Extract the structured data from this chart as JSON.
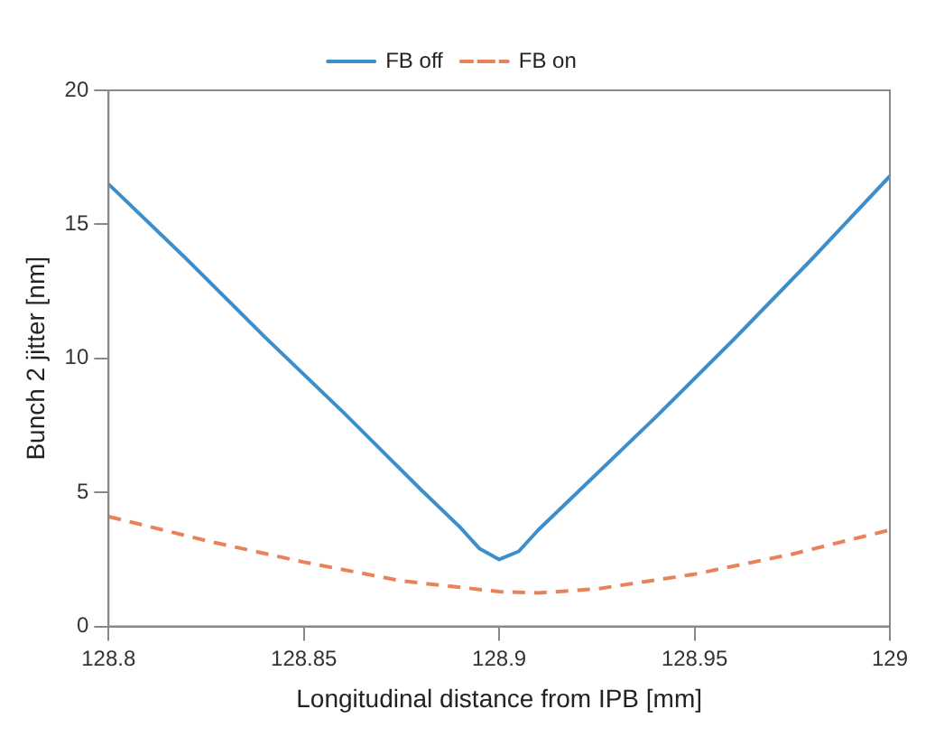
{
  "chart_data": {
    "type": "line",
    "xlabel": "Longitudinal distance from IPB [mm]",
    "ylabel": "Bunch 2 jitter [nm]",
    "xlim": [
      128.8,
      129
    ],
    "xticks": [
      128.8,
      128.85,
      128.9,
      128.95,
      129
    ],
    "ylim": [
      0,
      20
    ],
    "yticks": [
      0,
      5,
      10,
      15,
      20
    ],
    "legend": "top",
    "grid": false,
    "marker": "none",
    "series": [
      {
        "name": "FB off",
        "color": "#3d8fcb",
        "line_style": "solid",
        "x": [
          128.8,
          128.82,
          128.84,
          128.86,
          128.88,
          128.89,
          128.895,
          128.9,
          128.905,
          128.91,
          128.92,
          128.94,
          128.96,
          128.98,
          129
        ],
        "values": [
          16.5,
          13.7,
          10.8,
          8.0,
          5.1,
          3.7,
          2.9,
          2.5,
          2.8,
          3.6,
          5.0,
          7.8,
          10.7,
          13.7,
          16.8
        ]
      },
      {
        "name": "FB on",
        "color": "#e8825a",
        "line_style": "dashed",
        "x": [
          128.8,
          128.825,
          128.85,
          128.875,
          128.9,
          128.91,
          128.925,
          128.95,
          128.975,
          129
        ],
        "values": [
          4.1,
          3.2,
          2.4,
          1.7,
          1.3,
          1.25,
          1.4,
          1.95,
          2.7,
          3.6
        ]
      }
    ]
  }
}
